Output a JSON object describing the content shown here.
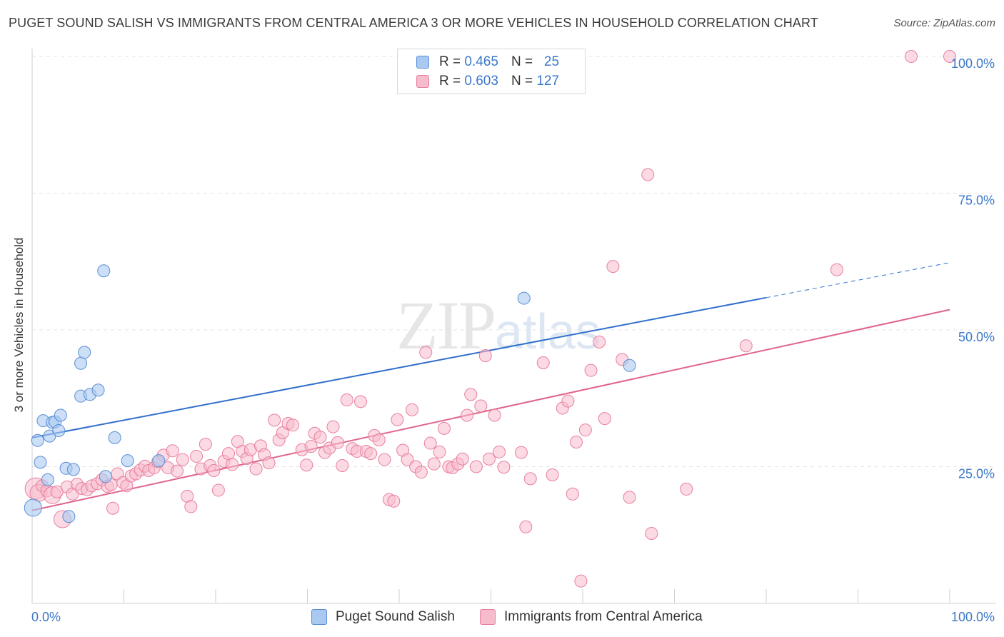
{
  "header": {
    "title": "PUGET SOUND SALISH VS IMMIGRANTS FROM CENTRAL AMERICA 3 OR MORE VEHICLES IN HOUSEHOLD CORRELATION CHART",
    "source": "Source: ZipAtlas.com"
  },
  "watermark": {
    "zip": "ZIP",
    "atlas": "atlas"
  },
  "legend": {
    "series1": {
      "r_label": "R =",
      "r_value": "0.465",
      "n_label": "N =",
      "n_value": "25"
    },
    "series2": {
      "r_label": "R =",
      "r_value": "0.603",
      "n_label": "N =",
      "n_value": "127"
    }
  },
  "colors": {
    "series1_fill": "#aac9f0",
    "series1_stroke": "#5b8fd6",
    "series1_line": "#2f6fcc",
    "series2_fill": "#f7bccc",
    "series2_stroke": "#e87fa0",
    "series2_line": "#e0648c",
    "axis_tick_text": "#3a78c9"
  },
  "chart_data": {
    "type": "scatter",
    "title": "PUGET SOUND SALISH VS IMMIGRANTS FROM CENTRAL AMERICA 3 OR MORE VEHICLES IN HOUSEHOLD CORRELATION CHART",
    "xlabel": "",
    "ylabel": "3 or more Vehicles in Household",
    "xlim": [
      0,
      100
    ],
    "ylim": [
      0,
      100
    ],
    "x_tick_labels": [
      "0.0%",
      "100.0%"
    ],
    "y_tick_labels": [
      "25.0%",
      "50.0%",
      "75.0%",
      "100.0%"
    ],
    "y_ticks": [
      25,
      50,
      75,
      100
    ],
    "grid": true,
    "legend_position": "top-center and bottom",
    "series": [
      {
        "name": "Puget Sound Salish",
        "r": 0.465,
        "n": 25,
        "trend": {
          "x": [
            0,
            80
          ],
          "y": [
            30.3,
            55.9
          ],
          "dashed_to": [
            100,
            62.3
          ]
        },
        "points": [
          {
            "x": 0.1,
            "y": 17.5,
            "s": 2
          },
          {
            "x": 0.6,
            "y": 29.8
          },
          {
            "x": 0.9,
            "y": 25.8
          },
          {
            "x": 1.2,
            "y": 33.4
          },
          {
            "x": 1.7,
            "y": 22.6
          },
          {
            "x": 1.9,
            "y": 30.6
          },
          {
            "x": 2.2,
            "y": 33.1
          },
          {
            "x": 2.5,
            "y": 33.2
          },
          {
            "x": 2.9,
            "y": 31.6
          },
          {
            "x": 3.1,
            "y": 34.4
          },
          {
            "x": 3.7,
            "y": 24.7
          },
          {
            "x": 4.0,
            "y": 15.9
          },
          {
            "x": 4.5,
            "y": 24.5
          },
          {
            "x": 5.3,
            "y": 43.9
          },
          {
            "x": 5.3,
            "y": 37.9
          },
          {
            "x": 5.7,
            "y": 45.9
          },
          {
            "x": 6.3,
            "y": 38.2
          },
          {
            "x": 7.2,
            "y": 39.0
          },
          {
            "x": 7.8,
            "y": 60.8
          },
          {
            "x": 8.0,
            "y": 23.2
          },
          {
            "x": 9.0,
            "y": 30.3
          },
          {
            "x": 10.4,
            "y": 26.1
          },
          {
            "x": 13.8,
            "y": 26.1
          },
          {
            "x": 53.6,
            "y": 55.8
          },
          {
            "x": 65.1,
            "y": 43.5
          }
        ]
      },
      {
        "name": "Immigrants from Central America",
        "r": 0.603,
        "n": 127,
        "trend": {
          "x": [
            0,
            100
          ],
          "y": [
            17.0,
            53.7
          ]
        },
        "points": [
          {
            "x": 0.4,
            "y": 21.0,
            "s": 3
          },
          {
            "x": 0.7,
            "y": 20.2,
            "s": 2
          },
          {
            "x": 1.1,
            "y": 21.5
          },
          {
            "x": 1.6,
            "y": 20.6
          },
          {
            "x": 2.2,
            "y": 19.8,
            "s": 2
          },
          {
            "x": 2.7,
            "y": 20.4
          },
          {
            "x": 3.3,
            "y": 15.4,
            "s": 2
          },
          {
            "x": 3.8,
            "y": 21.3
          },
          {
            "x": 4.4,
            "y": 20.0
          },
          {
            "x": 4.9,
            "y": 21.8
          },
          {
            "x": 5.4,
            "y": 21.0
          },
          {
            "x": 6.0,
            "y": 20.8
          },
          {
            "x": 6.5,
            "y": 21.5
          },
          {
            "x": 7.1,
            "y": 21.9
          },
          {
            "x": 7.6,
            "y": 22.6
          },
          {
            "x": 8.2,
            "y": 21.4
          },
          {
            "x": 8.6,
            "y": 21.7
          },
          {
            "x": 8.8,
            "y": 17.4
          },
          {
            "x": 9.3,
            "y": 23.7
          },
          {
            "x": 9.9,
            "y": 22.1
          },
          {
            "x": 10.3,
            "y": 21.5
          },
          {
            "x": 10.8,
            "y": 23.3
          },
          {
            "x": 11.3,
            "y": 23.7
          },
          {
            "x": 11.8,
            "y": 24.4
          },
          {
            "x": 12.3,
            "y": 25.1
          },
          {
            "x": 12.7,
            "y": 24.3
          },
          {
            "x": 13.3,
            "y": 24.8
          },
          {
            "x": 13.7,
            "y": 25.9
          },
          {
            "x": 14.3,
            "y": 27.1
          },
          {
            "x": 14.8,
            "y": 24.8
          },
          {
            "x": 15.3,
            "y": 27.9
          },
          {
            "x": 15.8,
            "y": 24.2
          },
          {
            "x": 16.4,
            "y": 26.3
          },
          {
            "x": 16.9,
            "y": 19.6
          },
          {
            "x": 17.3,
            "y": 17.7
          },
          {
            "x": 17.9,
            "y": 26.9
          },
          {
            "x": 18.4,
            "y": 24.6
          },
          {
            "x": 18.9,
            "y": 29.1
          },
          {
            "x": 19.4,
            "y": 25.2
          },
          {
            "x": 19.8,
            "y": 24.3
          },
          {
            "x": 20.3,
            "y": 20.7
          },
          {
            "x": 20.9,
            "y": 26.0
          },
          {
            "x": 21.4,
            "y": 27.4
          },
          {
            "x": 21.8,
            "y": 25.4
          },
          {
            "x": 22.4,
            "y": 29.6
          },
          {
            "x": 22.9,
            "y": 27.8
          },
          {
            "x": 23.4,
            "y": 26.5
          },
          {
            "x": 23.8,
            "y": 28.1
          },
          {
            "x": 24.4,
            "y": 24.6
          },
          {
            "x": 24.9,
            "y": 28.8
          },
          {
            "x": 25.3,
            "y": 27.2
          },
          {
            "x": 25.8,
            "y": 25.7
          },
          {
            "x": 26.4,
            "y": 33.5
          },
          {
            "x": 26.9,
            "y": 29.9
          },
          {
            "x": 27.3,
            "y": 31.2
          },
          {
            "x": 27.9,
            "y": 32.9
          },
          {
            "x": 28.4,
            "y": 32.6
          },
          {
            "x": 29.4,
            "y": 28.1
          },
          {
            "x": 29.9,
            "y": 25.3
          },
          {
            "x": 30.4,
            "y": 28.7
          },
          {
            "x": 30.8,
            "y": 31.1
          },
          {
            "x": 31.4,
            "y": 30.4
          },
          {
            "x": 31.9,
            "y": 27.6
          },
          {
            "x": 32.4,
            "y": 28.4
          },
          {
            "x": 32.8,
            "y": 32.3
          },
          {
            "x": 33.3,
            "y": 29.4
          },
          {
            "x": 33.8,
            "y": 25.2
          },
          {
            "x": 34.3,
            "y": 37.2
          },
          {
            "x": 34.9,
            "y": 28.3
          },
          {
            "x": 35.4,
            "y": 27.8
          },
          {
            "x": 35.8,
            "y": 36.9
          },
          {
            "x": 36.4,
            "y": 27.8
          },
          {
            "x": 36.9,
            "y": 27.4
          },
          {
            "x": 37.3,
            "y": 30.7
          },
          {
            "x": 37.8,
            "y": 29.9
          },
          {
            "x": 38.4,
            "y": 26.3
          },
          {
            "x": 38.9,
            "y": 19.0
          },
          {
            "x": 39.4,
            "y": 18.7
          },
          {
            "x": 39.8,
            "y": 33.6
          },
          {
            "x": 40.4,
            "y": 28.0
          },
          {
            "x": 40.9,
            "y": 26.3
          },
          {
            "x": 41.4,
            "y": 35.4
          },
          {
            "x": 41.8,
            "y": 25.0
          },
          {
            "x": 42.4,
            "y": 24.0
          },
          {
            "x": 42.9,
            "y": 45.9
          },
          {
            "x": 43.4,
            "y": 29.3
          },
          {
            "x": 43.8,
            "y": 25.5
          },
          {
            "x": 44.4,
            "y": 27.7
          },
          {
            "x": 44.9,
            "y": 32.0
          },
          {
            "x": 45.4,
            "y": 25.0
          },
          {
            "x": 45.8,
            "y": 24.8
          },
          {
            "x": 46.4,
            "y": 25.5
          },
          {
            "x": 46.9,
            "y": 26.4
          },
          {
            "x": 47.4,
            "y": 34.4
          },
          {
            "x": 47.8,
            "y": 38.2
          },
          {
            "x": 48.4,
            "y": 25.0
          },
          {
            "x": 48.9,
            "y": 36.1
          },
          {
            "x": 49.4,
            "y": 45.3
          },
          {
            "x": 49.8,
            "y": 26.4
          },
          {
            "x": 50.4,
            "y": 34.4
          },
          {
            "x": 50.9,
            "y": 27.7
          },
          {
            "x": 51.4,
            "y": 24.9
          },
          {
            "x": 53.3,
            "y": 27.6
          },
          {
            "x": 53.8,
            "y": 14.0
          },
          {
            "x": 54.3,
            "y": 22.8
          },
          {
            "x": 55.7,
            "y": 44.0
          },
          {
            "x": 56.7,
            "y": 23.5
          },
          {
            "x": 57.8,
            "y": 35.7
          },
          {
            "x": 58.4,
            "y": 37.0
          },
          {
            "x": 58.9,
            "y": 20.0
          },
          {
            "x": 59.3,
            "y": 29.5
          },
          {
            "x": 59.8,
            "y": 4.1
          },
          {
            "x": 60.3,
            "y": 31.7
          },
          {
            "x": 60.9,
            "y": 42.6
          },
          {
            "x": 61.8,
            "y": 47.8
          },
          {
            "x": 62.4,
            "y": 33.8
          },
          {
            "x": 63.3,
            "y": 61.6
          },
          {
            "x": 64.3,
            "y": 44.6
          },
          {
            "x": 65.1,
            "y": 19.4
          },
          {
            "x": 67.1,
            "y": 78.4
          },
          {
            "x": 67.5,
            "y": 12.8
          },
          {
            "x": 71.3,
            "y": 20.9
          },
          {
            "x": 77.8,
            "y": 47.1
          },
          {
            "x": 87.7,
            "y": 61.0
          },
          {
            "x": 95.8,
            "y": 100.0
          },
          {
            "x": 100.0,
            "y": 100.0
          }
        ]
      }
    ]
  }
}
